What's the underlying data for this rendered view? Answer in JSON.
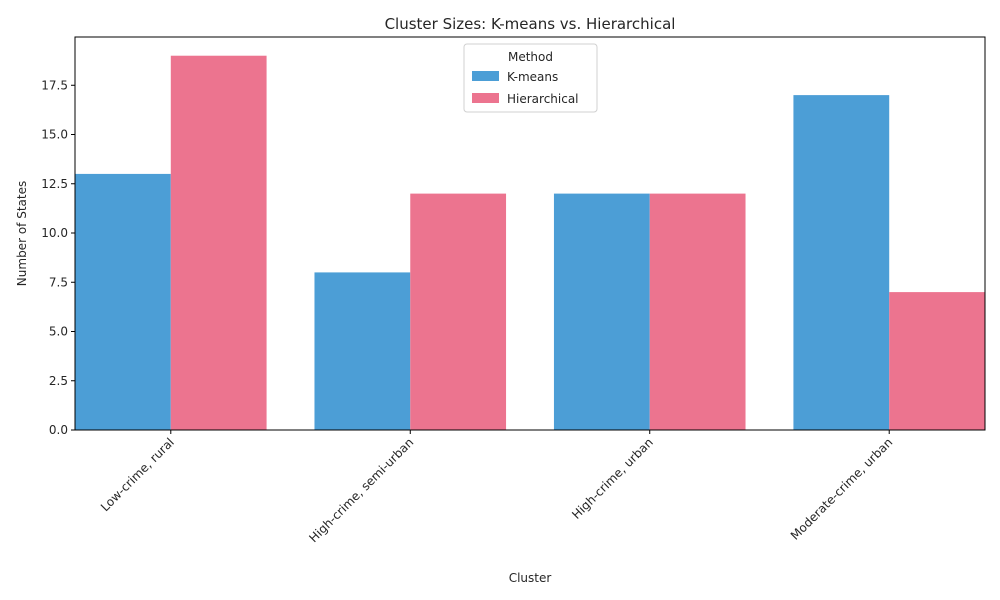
{
  "chart_data": {
    "type": "bar",
    "title": "Cluster Sizes: K-means vs. Hierarchical",
    "xlabel": "Cluster",
    "ylabel": "Number of States",
    "categories": [
      "Low-crime, rural",
      "High-crime, semi-urban",
      "High-crime, urban",
      "Moderate-crime, urban"
    ],
    "series": [
      {
        "name": "K-means",
        "values": [
          13,
          8,
          12,
          17
        ],
        "color": "#4c9ed6"
      },
      {
        "name": "Hierarchical",
        "values": [
          19,
          12,
          12,
          7
        ],
        "color": "#ec748f"
      }
    ],
    "ylim": [
      0,
      19.95
    ],
    "yticks": [
      0,
      2.5,
      5,
      7.5,
      10,
      12.5,
      15,
      17.5
    ],
    "ytick_labels": [
      "0.0",
      "2.5",
      "5.0",
      "7.5",
      "10.0",
      "12.5",
      "15.0",
      "17.5"
    ],
    "grid": false,
    "legend": {
      "title": "Method",
      "placement": "top-center"
    },
    "xtick_rotation": 45
  }
}
